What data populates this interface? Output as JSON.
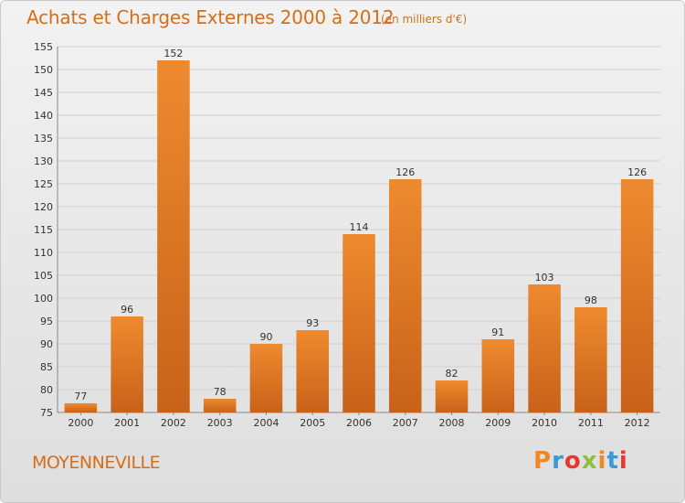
{
  "header": {
    "title": "Achats et Charges Externes 2000 à 2012",
    "unit_note": "(en milliers d'€)"
  },
  "footer": {
    "town": "MOYENNEVILLE",
    "logo_text": "Proxiti",
    "logo_colors": [
      "#f08a1e",
      "#3a9ad9",
      "#e23b2e",
      "#8dbf3f",
      "#f08a1e",
      "#3a9ad9",
      "#e23b2e"
    ]
  },
  "chart_data": {
    "type": "bar",
    "title": "Achats et Charges Externes 2000 à 2012",
    "subtitle": "(en milliers d'€)",
    "xlabel": "",
    "ylabel": "",
    "categories": [
      "2000",
      "2001",
      "2002",
      "2003",
      "2004",
      "2005",
      "2006",
      "2007",
      "2008",
      "2009",
      "2010",
      "2011",
      "2012"
    ],
    "values": [
      77,
      96,
      152,
      78,
      90,
      93,
      114,
      126,
      82,
      91,
      103,
      98,
      126
    ],
    "ylim": [
      75,
      155
    ],
    "yticks": [
      75,
      80,
      85,
      90,
      95,
      100,
      105,
      110,
      115,
      120,
      125,
      130,
      135,
      140,
      145,
      150,
      155
    ],
    "grid": true,
    "legend": "none",
    "bar_color": "#ee8a2e",
    "bar_color_dark": "#c8621a",
    "grid_color": "#d0d0d0"
  }
}
